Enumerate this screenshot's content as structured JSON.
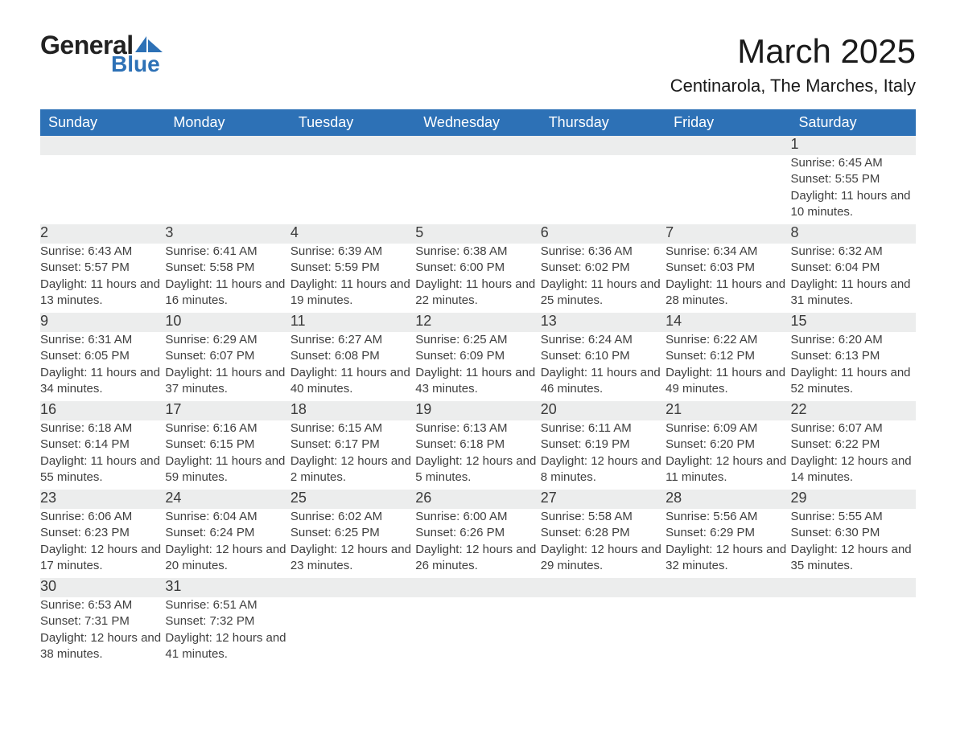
{
  "logo": {
    "word1": "General",
    "word2": "Blue",
    "icon_color": "#2d71b6"
  },
  "title": "March 2025",
  "location": "Centinarola, The Marches, Italy",
  "colors": {
    "header_blue": "#2d71b6",
    "row_grey": "#eceded",
    "border_blue": "#2d71b6",
    "text": "#3f3f3f",
    "bg": "#ffffff"
  },
  "fonts": {
    "title_pt": 42,
    "location_pt": 22,
    "dayhead_pt": 18,
    "daynum_pt": 18,
    "body_pt": 15
  },
  "day_headers": [
    "Sunday",
    "Monday",
    "Tuesday",
    "Wednesday",
    "Thursday",
    "Friday",
    "Saturday"
  ],
  "weeks": [
    [
      null,
      null,
      null,
      null,
      null,
      null,
      {
        "n": "1",
        "sunrise": "6:45 AM",
        "sunset": "5:55 PM",
        "daylight": "11 hours and 10 minutes."
      }
    ],
    [
      {
        "n": "2",
        "sunrise": "6:43 AM",
        "sunset": "5:57 PM",
        "daylight": "11 hours and 13 minutes."
      },
      {
        "n": "3",
        "sunrise": "6:41 AM",
        "sunset": "5:58 PM",
        "daylight": "11 hours and 16 minutes."
      },
      {
        "n": "4",
        "sunrise": "6:39 AM",
        "sunset": "5:59 PM",
        "daylight": "11 hours and 19 minutes."
      },
      {
        "n": "5",
        "sunrise": "6:38 AM",
        "sunset": "6:00 PM",
        "daylight": "11 hours and 22 minutes."
      },
      {
        "n": "6",
        "sunrise": "6:36 AM",
        "sunset": "6:02 PM",
        "daylight": "11 hours and 25 minutes."
      },
      {
        "n": "7",
        "sunrise": "6:34 AM",
        "sunset": "6:03 PM",
        "daylight": "11 hours and 28 minutes."
      },
      {
        "n": "8",
        "sunrise": "6:32 AM",
        "sunset": "6:04 PM",
        "daylight": "11 hours and 31 minutes."
      }
    ],
    [
      {
        "n": "9",
        "sunrise": "6:31 AM",
        "sunset": "6:05 PM",
        "daylight": "11 hours and 34 minutes."
      },
      {
        "n": "10",
        "sunrise": "6:29 AM",
        "sunset": "6:07 PM",
        "daylight": "11 hours and 37 minutes."
      },
      {
        "n": "11",
        "sunrise": "6:27 AM",
        "sunset": "6:08 PM",
        "daylight": "11 hours and 40 minutes."
      },
      {
        "n": "12",
        "sunrise": "6:25 AM",
        "sunset": "6:09 PM",
        "daylight": "11 hours and 43 minutes."
      },
      {
        "n": "13",
        "sunrise": "6:24 AM",
        "sunset": "6:10 PM",
        "daylight": "11 hours and 46 minutes."
      },
      {
        "n": "14",
        "sunrise": "6:22 AM",
        "sunset": "6:12 PM",
        "daylight": "11 hours and 49 minutes."
      },
      {
        "n": "15",
        "sunrise": "6:20 AM",
        "sunset": "6:13 PM",
        "daylight": "11 hours and 52 minutes."
      }
    ],
    [
      {
        "n": "16",
        "sunrise": "6:18 AM",
        "sunset": "6:14 PM",
        "daylight": "11 hours and 55 minutes."
      },
      {
        "n": "17",
        "sunrise": "6:16 AM",
        "sunset": "6:15 PM",
        "daylight": "11 hours and 59 minutes."
      },
      {
        "n": "18",
        "sunrise": "6:15 AM",
        "sunset": "6:17 PM",
        "daylight": "12 hours and 2 minutes."
      },
      {
        "n": "19",
        "sunrise": "6:13 AM",
        "sunset": "6:18 PM",
        "daylight": "12 hours and 5 minutes."
      },
      {
        "n": "20",
        "sunrise": "6:11 AM",
        "sunset": "6:19 PM",
        "daylight": "12 hours and 8 minutes."
      },
      {
        "n": "21",
        "sunrise": "6:09 AM",
        "sunset": "6:20 PM",
        "daylight": "12 hours and 11 minutes."
      },
      {
        "n": "22",
        "sunrise": "6:07 AM",
        "sunset": "6:22 PM",
        "daylight": "12 hours and 14 minutes."
      }
    ],
    [
      {
        "n": "23",
        "sunrise": "6:06 AM",
        "sunset": "6:23 PM",
        "daylight": "12 hours and 17 minutes."
      },
      {
        "n": "24",
        "sunrise": "6:04 AM",
        "sunset": "6:24 PM",
        "daylight": "12 hours and 20 minutes."
      },
      {
        "n": "25",
        "sunrise": "6:02 AM",
        "sunset": "6:25 PM",
        "daylight": "12 hours and 23 minutes."
      },
      {
        "n": "26",
        "sunrise": "6:00 AM",
        "sunset": "6:26 PM",
        "daylight": "12 hours and 26 minutes."
      },
      {
        "n": "27",
        "sunrise": "5:58 AM",
        "sunset": "6:28 PM",
        "daylight": "12 hours and 29 minutes."
      },
      {
        "n": "28",
        "sunrise": "5:56 AM",
        "sunset": "6:29 PM",
        "daylight": "12 hours and 32 minutes."
      },
      {
        "n": "29",
        "sunrise": "5:55 AM",
        "sunset": "6:30 PM",
        "daylight": "12 hours and 35 minutes."
      }
    ],
    [
      {
        "n": "30",
        "sunrise": "6:53 AM",
        "sunset": "7:31 PM",
        "daylight": "12 hours and 38 minutes."
      },
      {
        "n": "31",
        "sunrise": "6:51 AM",
        "sunset": "7:32 PM",
        "daylight": "12 hours and 41 minutes."
      },
      null,
      null,
      null,
      null,
      null
    ]
  ],
  "labels": {
    "sunrise": "Sunrise: ",
    "sunset": "Sunset: ",
    "daylight": "Daylight: "
  }
}
